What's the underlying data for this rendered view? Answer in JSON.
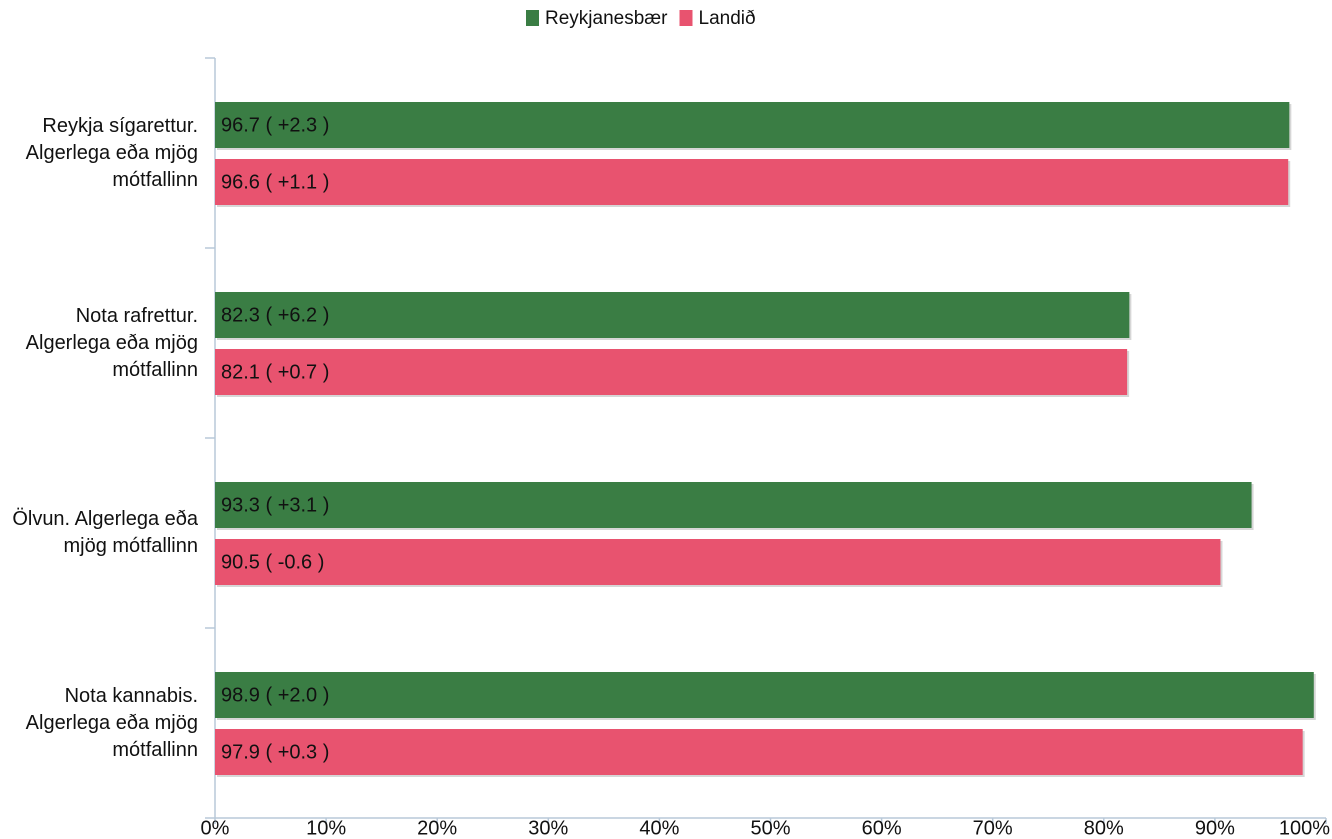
{
  "chart_data": {
    "type": "bar",
    "orientation": "horizontal",
    "categories": [
      "Reykja sígarettur. Algerlega eða mjög mótfallinn",
      "Nota rafrettur. Algerlega eða mjög mótfallinn",
      "Ölvun. Algerlega eða mjög mótfallinn",
      "Nota kannabis. Algerlega eða mjög mótfallinn"
    ],
    "series": [
      {
        "name": "Reykjanesbær",
        "color": "#3a7d44",
        "label_color": "#ffffff",
        "values": [
          96.7,
          82.3,
          93.3,
          98.9
        ],
        "value_labels": [
          "96.7 ( +2.3 )",
          "82.3 ( +6.2 )",
          "93.3 ( +3.1 )",
          "98.9 ( +2.0 )"
        ]
      },
      {
        "name": "Landið",
        "color": "#e8536f",
        "label_color": "#000000",
        "values": [
          96.6,
          82.1,
          90.5,
          97.9
        ],
        "value_labels": [
          "96.6 ( +1.1 )",
          "82.1 ( +0.7 )",
          "90.5 ( -0.6 )",
          "97.9 ( +0.3 )"
        ]
      }
    ],
    "xlim": [
      0,
      100
    ],
    "xticks": [
      {
        "value": 0,
        "label": "0%"
      },
      {
        "value": 10,
        "label": "10%"
      },
      {
        "value": 20,
        "label": "20%"
      },
      {
        "value": 30,
        "label": "30%"
      },
      {
        "value": 40,
        "label": "40%"
      },
      {
        "value": 50,
        "label": "50%"
      },
      {
        "value": 60,
        "label": "60%"
      },
      {
        "value": 70,
        "label": "70%"
      },
      {
        "value": 80,
        "label": "80%"
      },
      {
        "value": 90,
        "label": "90%"
      },
      {
        "value": 100,
        "label": "100%"
      }
    ],
    "legend": "top"
  }
}
